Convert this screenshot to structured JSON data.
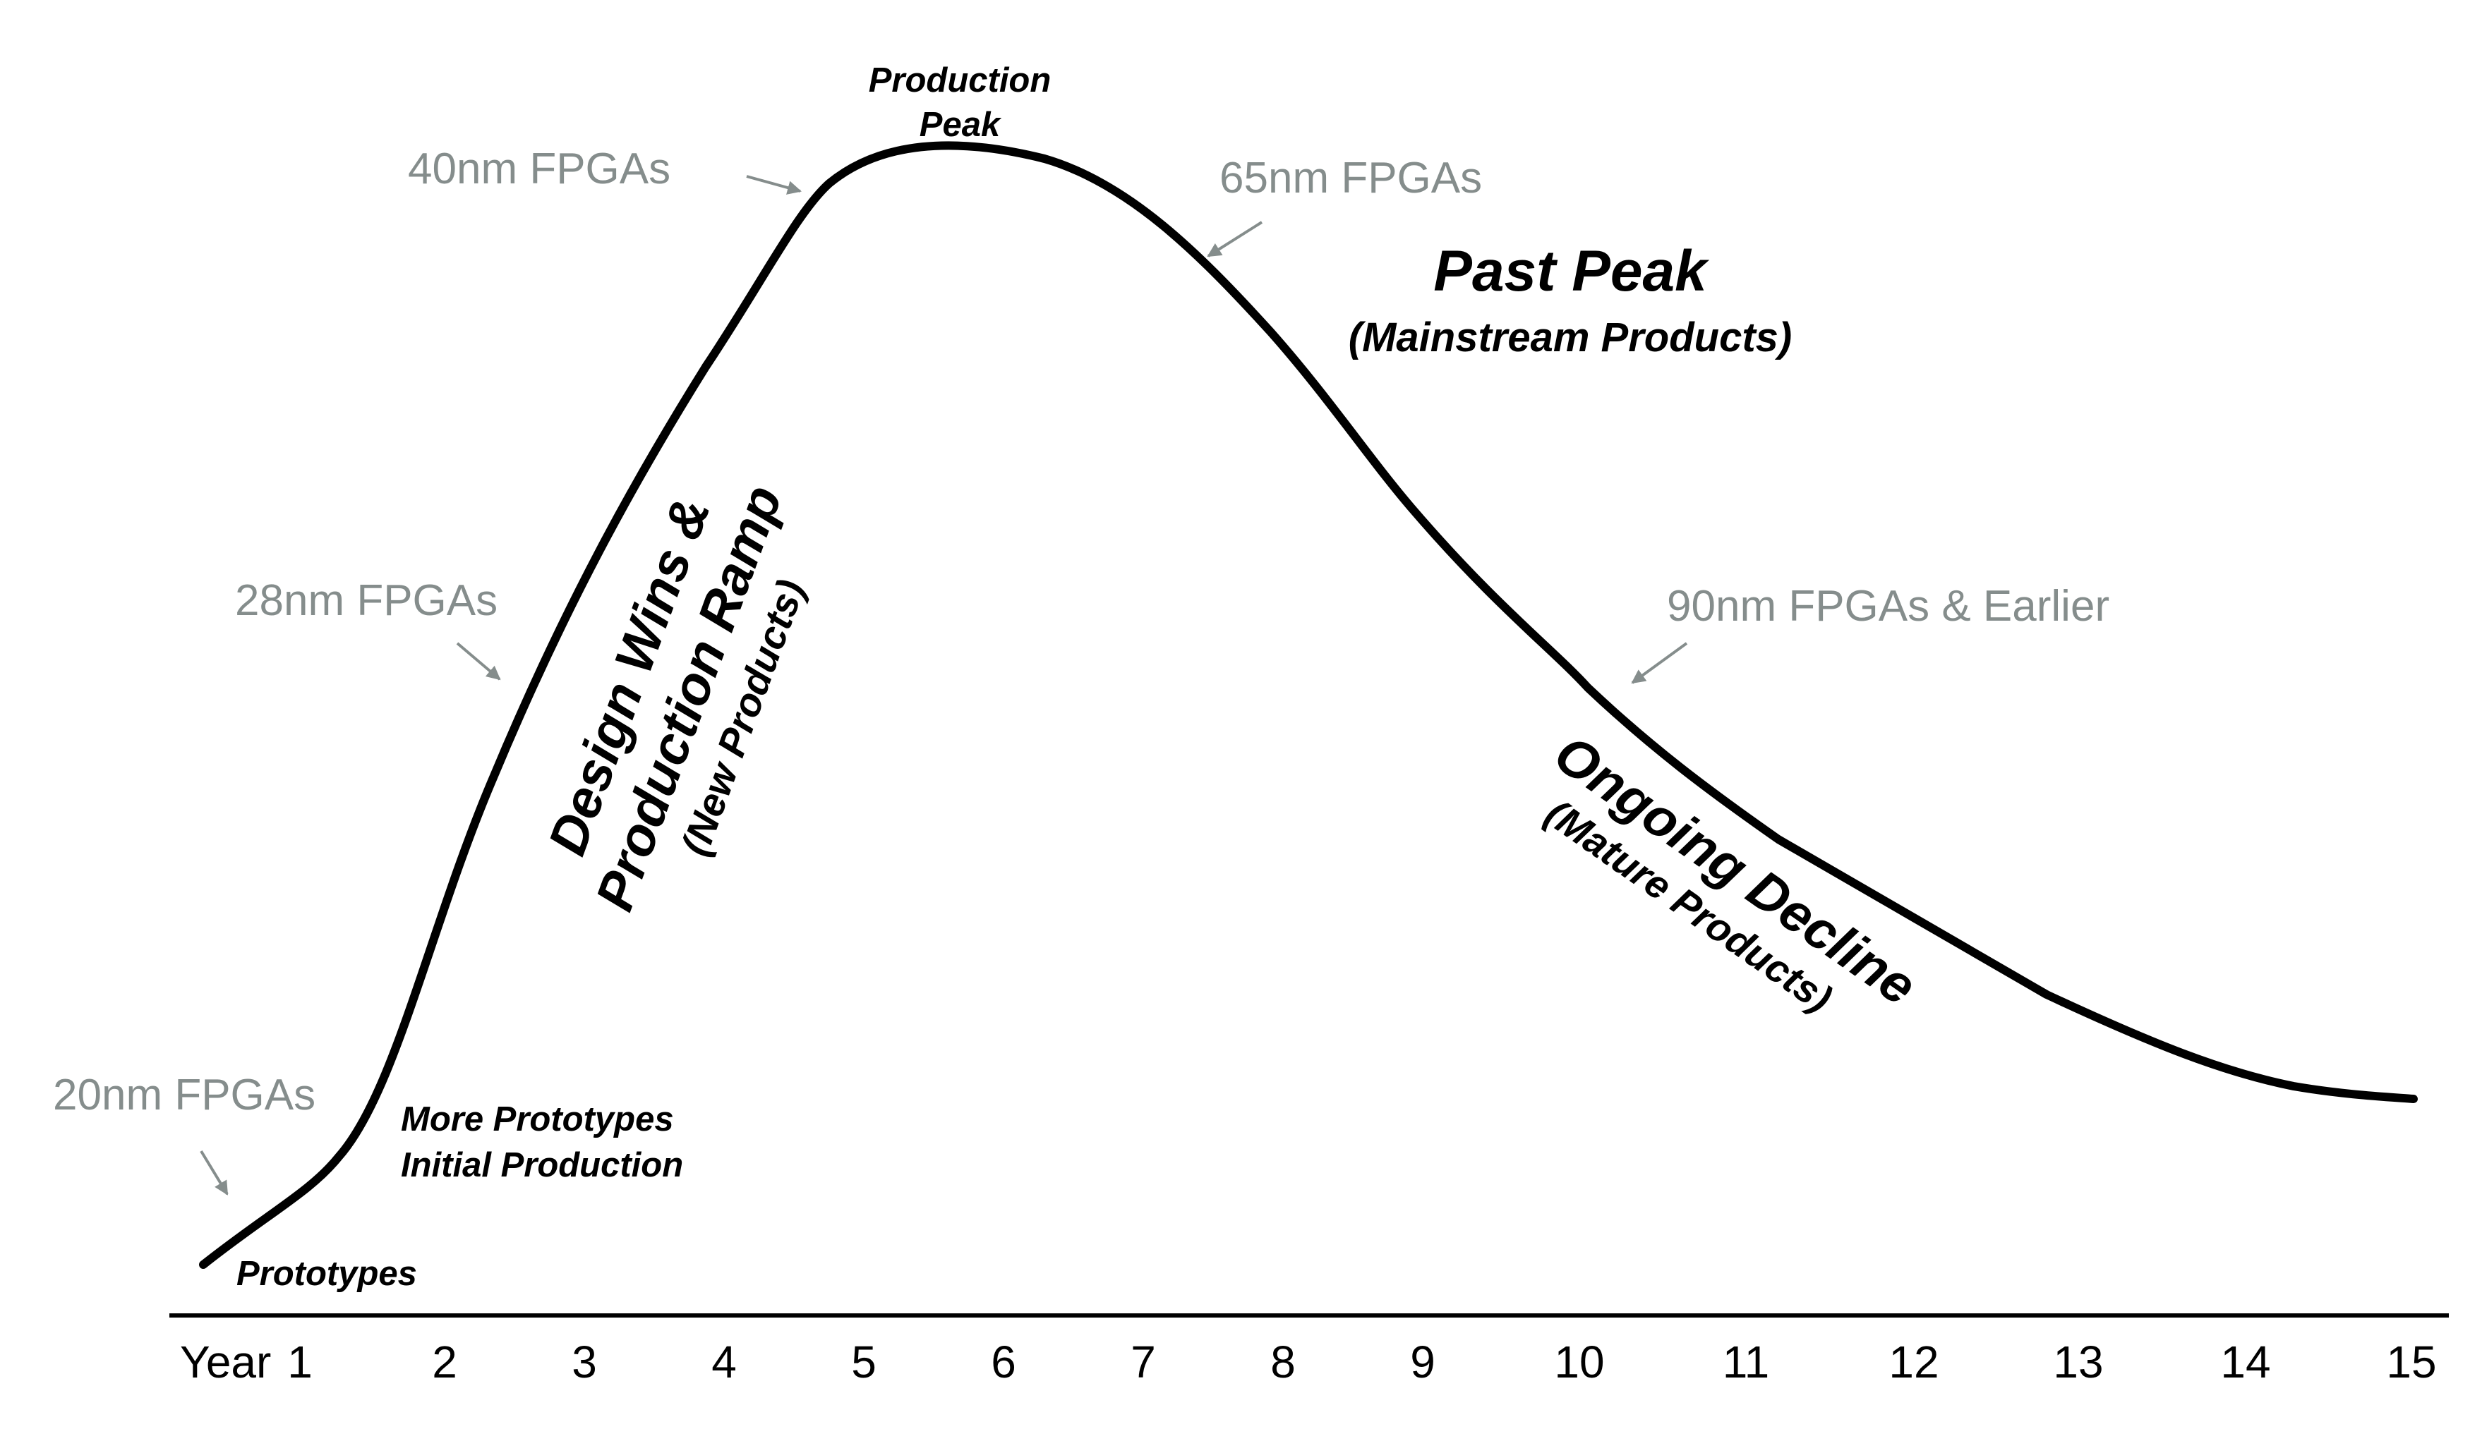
{
  "diagram": {
    "type": "lifecycle-curve",
    "colors": {
      "curve": "#000000",
      "annotation": "#858d8c",
      "text": "#000000"
    },
    "axis": {
      "year_label": "Year",
      "ticks": [
        "1",
        "2",
        "3",
        "4",
        "5",
        "6",
        "7",
        "8",
        "9",
        "10",
        "11",
        "12",
        "13",
        "14",
        "15"
      ]
    },
    "stage_labels": {
      "prototypes": "Prototypes",
      "more_prototypes": "More Prototypes",
      "initial_production": "Initial Production",
      "production": "Production",
      "peak": "Peak"
    },
    "nodes": {
      "n20": "20nm FPGAs",
      "n28": "28nm FPGAs",
      "n40": "40nm FPGAs",
      "n65": "65nm FPGAs",
      "n90": "90nm FPGAs & Earlier"
    },
    "phases": {
      "ramp_line1": "Design Wins &",
      "ramp_line2": "Production Ramp",
      "ramp_sub": "(New Products)",
      "past_title": "Past Peak",
      "past_sub": "(Mainstream Products)",
      "decline_title": "Ongoing Decline",
      "decline_sub": "(Mature Products)"
    }
  }
}
